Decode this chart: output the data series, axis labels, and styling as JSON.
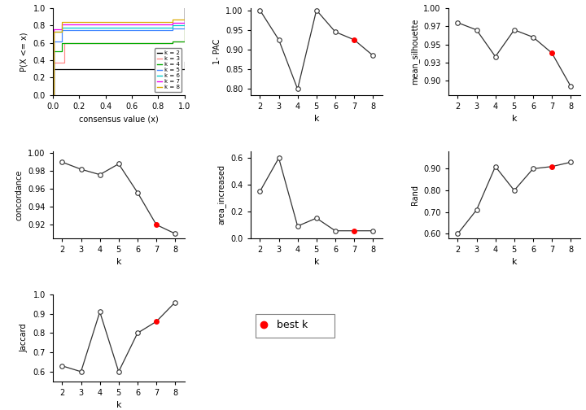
{
  "ecdf_colors": {
    "2": "#000000",
    "3": "#FF8888",
    "4": "#00AA00",
    "5": "#4488FF",
    "6": "#00CCCC",
    "7": "#EE00EE",
    "8": "#DDAA00"
  },
  "pac": {
    "k": [
      2,
      3,
      4,
      5,
      6,
      7,
      8
    ],
    "values": [
      1.0,
      0.925,
      0.8,
      1.0,
      0.945,
      0.925,
      0.885
    ],
    "best_k": 7,
    "ylabel": "1- PAC",
    "ylim": [
      0.785,
      1.005
    ]
  },
  "silhouette": {
    "k": [
      2,
      3,
      4,
      5,
      6,
      7,
      8
    ],
    "values": [
      0.98,
      0.97,
      0.933,
      0.97,
      0.96,
      0.938,
      0.892
    ],
    "best_k": 7,
    "ylabel": "mean_silhouette",
    "ylim": [
      0.88,
      1.0
    ]
  },
  "concordance": {
    "k": [
      2,
      3,
      4,
      5,
      6,
      7,
      8
    ],
    "values": [
      0.99,
      0.982,
      0.976,
      0.988,
      0.956,
      0.92,
      0.91
    ],
    "best_k": 7,
    "ylabel": "concordance",
    "ylim": [
      0.905,
      1.002
    ]
  },
  "area_increased": {
    "k": [
      2,
      3,
      4,
      5,
      6,
      7,
      8
    ],
    "values": [
      0.35,
      0.6,
      0.09,
      0.15,
      0.055,
      0.055,
      0.055
    ],
    "best_k": 7,
    "ylabel": "area_increased",
    "ylim": [
      0.0,
      0.65
    ]
  },
  "rand": {
    "k": [
      2,
      3,
      4,
      5,
      6,
      7,
      8
    ],
    "values": [
      0.6,
      0.71,
      0.91,
      0.8,
      0.9,
      0.91,
      0.93
    ],
    "best_k": 7,
    "ylabel": "Rand",
    "ylim": [
      0.58,
      0.98
    ]
  },
  "jaccard": {
    "k": [
      2,
      3,
      4,
      5,
      6,
      7,
      8
    ],
    "values": [
      0.63,
      0.6,
      0.91,
      0.6,
      0.8,
      0.86,
      0.96
    ],
    "best_k": 7,
    "ylabel": "Jaccard",
    "ylim": [
      0.55,
      1.0
    ]
  },
  "best_k_color": "#FF0000",
  "line_color": "#333333",
  "xlabel": "k",
  "background": "#FFFFFF"
}
